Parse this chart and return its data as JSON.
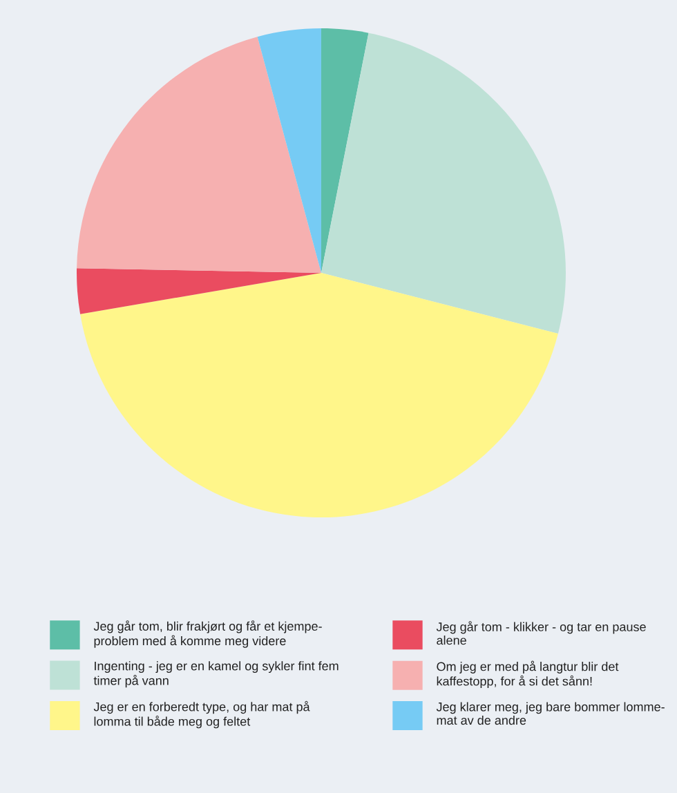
{
  "chart_data": {
    "type": "pie",
    "categories": [
      "Jeg går tom, blir frakjørt og får et kjempe-\nproblem med å komme meg videre",
      "Ingenting - jeg er en kamel og sykler fint fem\ntimer på vann",
      "Jeg er en forberedt type, og har mat på\nlomma til både meg og feltet",
      "Jeg går tom - klikker - og tar en pause\nalene",
      "Om jeg er med på langtur blir det\nkaffestopp, for å si det sånn!",
      "Jeg klarer meg, jeg bare bommer lomme-\nmat av de andre"
    ],
    "values": [
      3.1,
      25.9,
      43.3,
      3.0,
      20.5,
      4.2
    ],
    "colors": [
      "#5dbea7",
      "#bee1d6",
      "#fff68a",
      "#ea4c60",
      "#f6b0b0",
      "#76cbf4"
    ],
    "legend": "bottom"
  }
}
